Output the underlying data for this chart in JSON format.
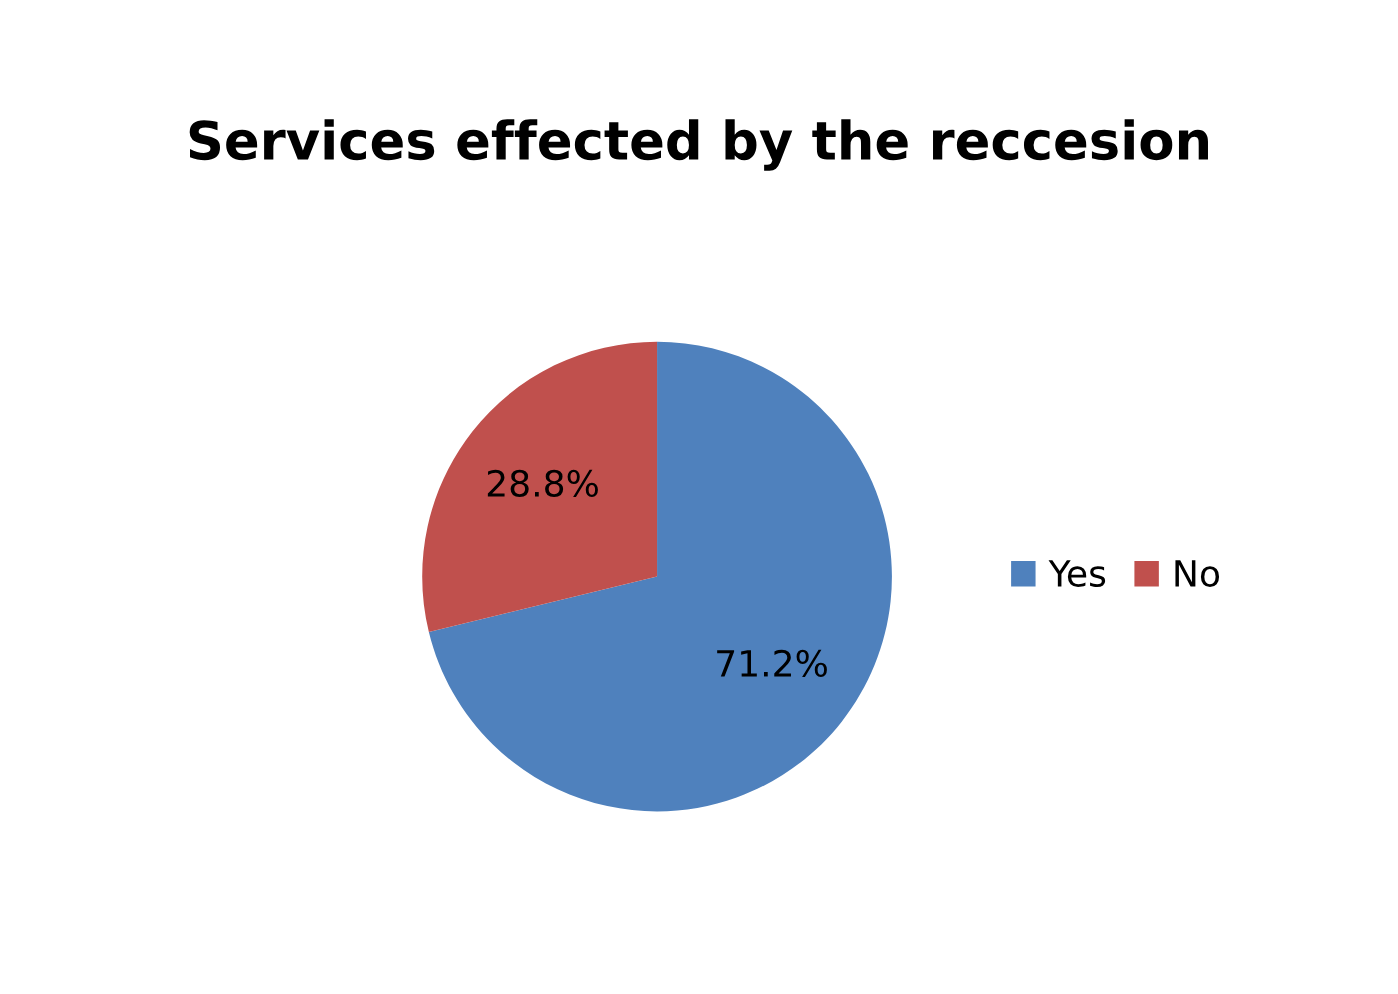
{
  "chart_data": {
    "type": "pie",
    "title": "Services effected by the reccesion",
    "categories": [
      "Yes",
      "No"
    ],
    "values": [
      71.2,
      28.8
    ],
    "colors": [
      "#4f81bd",
      "#c0504d"
    ],
    "value_labels": [
      "71.2%",
      "28.8%"
    ],
    "legend": "right"
  }
}
